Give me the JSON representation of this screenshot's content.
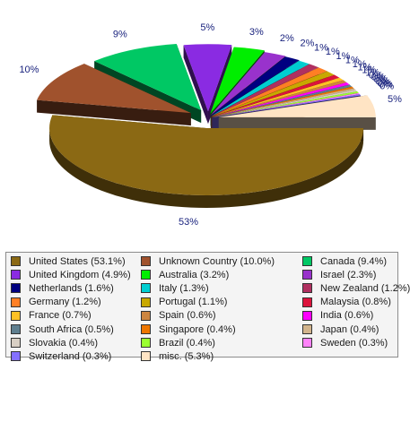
{
  "chart_data": {
    "type": "pie",
    "title": "",
    "legend_position": "bottom",
    "slices": [
      {
        "label": "United States",
        "legend": "United States (53.1%)",
        "value": 53.1,
        "pct_label": "53%",
        "color": "#8b6914"
      },
      {
        "label": "Unknown Country",
        "legend": "Unknown Country (10.0%)",
        "value": 10.0,
        "pct_label": "10%",
        "color": "#a0522d"
      },
      {
        "label": "Canada",
        "legend": "Canada (9.4%)",
        "value": 9.4,
        "pct_label": "9%",
        "color": "#00c864"
      },
      {
        "label": "United Kingdom",
        "legend": "United Kingdom (4.9%)",
        "value": 4.9,
        "pct_label": "5%",
        "color": "#8a2be2"
      },
      {
        "label": "Australia",
        "legend": "Australia (3.2%)",
        "value": 3.2,
        "pct_label": "3%",
        "color": "#00ee00"
      },
      {
        "label": "Israel",
        "legend": "Israel (2.3%)",
        "value": 2.3,
        "pct_label": "2%",
        "color": "#9932cc"
      },
      {
        "label": "Netherlands",
        "legend": "Netherlands (1.6%)",
        "value": 1.6,
        "pct_label": "2%",
        "color": "#000080"
      },
      {
        "label": "Italy",
        "legend": "Italy (1.3%)",
        "value": 1.3,
        "pct_label": "1%",
        "color": "#00ced1"
      },
      {
        "label": "New Zealand",
        "legend": "New Zealand (1.2%)",
        "value": 1.2,
        "pct_label": "1%",
        "color": "#b03060"
      },
      {
        "label": "Germany",
        "legend": "Germany (1.2%)",
        "value": 1.2,
        "pct_label": "1%",
        "color": "#ff7f24"
      },
      {
        "label": "Portugal",
        "legend": "Portugal (1.1%)",
        "value": 1.1,
        "pct_label": "1%",
        "color": "#c8a800"
      },
      {
        "label": "Malaysia",
        "legend": "Malaysia (0.8%)",
        "value": 0.8,
        "pct_label": "1%",
        "color": "#dc143c"
      },
      {
        "label": "France",
        "legend": "France (0.7%)",
        "value": 0.7,
        "pct_label": "1%",
        "color": "#ffc125"
      },
      {
        "label": "Spain",
        "legend": "Spain (0.6%)",
        "value": 0.6,
        "pct_label": "1%",
        "color": "#cd853f"
      },
      {
        "label": "India",
        "legend": "India (0.6%)",
        "value": 0.6,
        "pct_label": "1%",
        "color": "#ff00ff"
      },
      {
        "label": "South Africa",
        "legend": "South Africa (0.5%)",
        "value": 0.5,
        "pct_label": "0%",
        "color": "#5f7f8f"
      },
      {
        "label": "Singapore",
        "legend": "Singapore (0.4%)",
        "value": 0.4,
        "pct_label": "0%",
        "color": "#ee7600"
      },
      {
        "label": "Japan",
        "legend": "Japan (0.4%)",
        "value": 0.4,
        "pct_label": "0%",
        "color": "#d2b48c"
      },
      {
        "label": "Slovakia",
        "legend": "Slovakia (0.4%)",
        "value": 0.4,
        "pct_label": "0%",
        "color": "#d8cfc4"
      },
      {
        "label": "Brazil",
        "legend": "Brazil (0.4%)",
        "value": 0.4,
        "pct_label": "0%",
        "color": "#9aff30"
      },
      {
        "label": "Sweden",
        "legend": "Sweden (0.3%)",
        "value": 0.3,
        "pct_label": "0%",
        "color": "#ff83fa"
      },
      {
        "label": "Switzerland",
        "legend": "Switzerland (0.3%)",
        "value": 0.3,
        "pct_label": "0%",
        "color": "#8470ff"
      },
      {
        "label": "misc.",
        "legend": "misc. (5.3%)",
        "value": 5.3,
        "pct_label": "5%",
        "color": "#ffe4c4"
      }
    ]
  }
}
